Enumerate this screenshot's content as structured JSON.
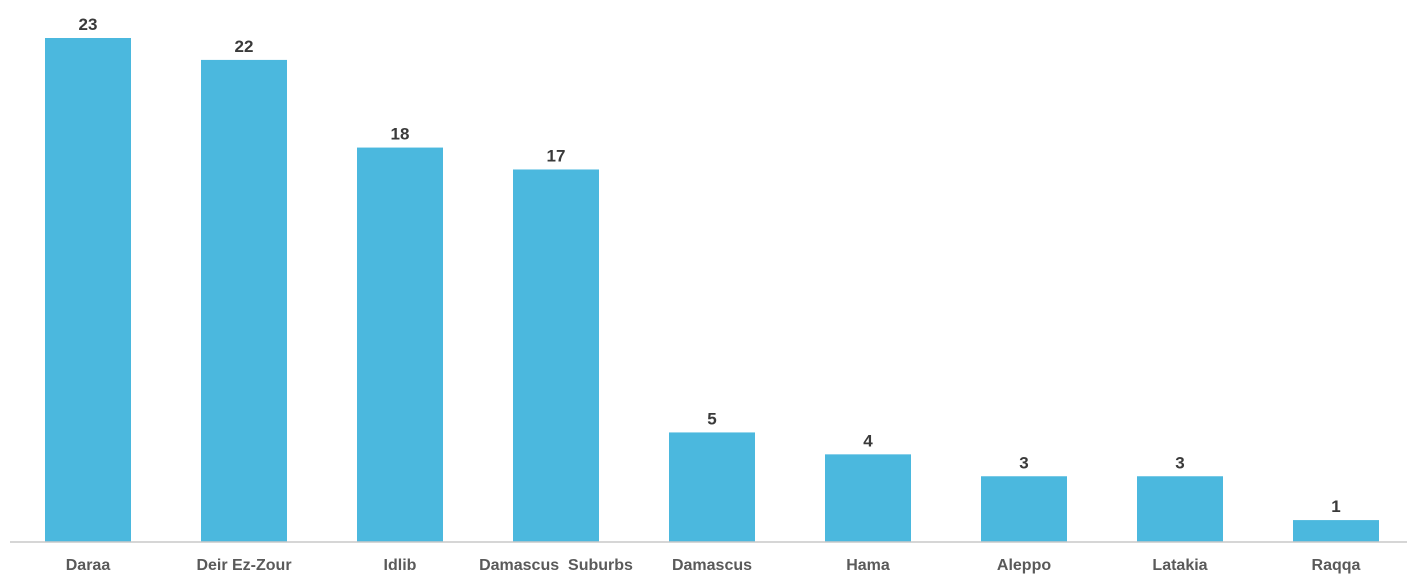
{
  "chart_data": {
    "type": "bar",
    "categories": [
      "Daraa",
      "Deir Ez-Zour",
      "Idlib",
      "Damascus  Suburbs",
      "Damascus",
      "Hama",
      "Aleppo",
      "Latakia",
      "Raqqa"
    ],
    "values": [
      23,
      22,
      18,
      17,
      5,
      4,
      3,
      3,
      1
    ],
    "title": "",
    "xlabel": "",
    "ylabel": "",
    "ylim": [
      0,
      23
    ],
    "grid": false,
    "data_labels": true,
    "colors": {
      "bar": "#4bb8de",
      "axis": "#c8c8c8",
      "value_text": "#3a3a3a",
      "tick_text": "#5a5a5a"
    }
  }
}
